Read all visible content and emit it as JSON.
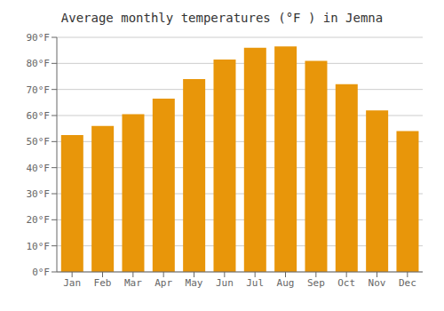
{
  "chart_data": {
    "type": "bar",
    "title": "Average monthly temperatures (°F ) in Jemna",
    "categories": [
      "Jan",
      "Feb",
      "Mar",
      "Apr",
      "May",
      "Jun",
      "Jul",
      "Aug",
      "Sep",
      "Oct",
      "Nov",
      "Dec"
    ],
    "values": [
      52.5,
      56,
      60.5,
      66.5,
      74,
      81.5,
      86,
      86.5,
      81,
      72,
      62,
      54
    ],
    "color": "#E8960A",
    "ylim": [
      0,
      90
    ],
    "yticks": [
      {
        "value": 0,
        "label": "0°F"
      },
      {
        "value": 10,
        "label": "10°F"
      },
      {
        "value": 20,
        "label": "20°F"
      },
      {
        "value": 30,
        "label": "30°F"
      },
      {
        "value": 40,
        "label": "40°F"
      },
      {
        "value": 50,
        "label": "50°F"
      },
      {
        "value": 60,
        "label": "60°F"
      },
      {
        "value": 70,
        "label": "70°F"
      },
      {
        "value": 80,
        "label": "80°F"
      },
      {
        "value": 90,
        "label": "90°F"
      }
    ],
    "grid": true
  }
}
